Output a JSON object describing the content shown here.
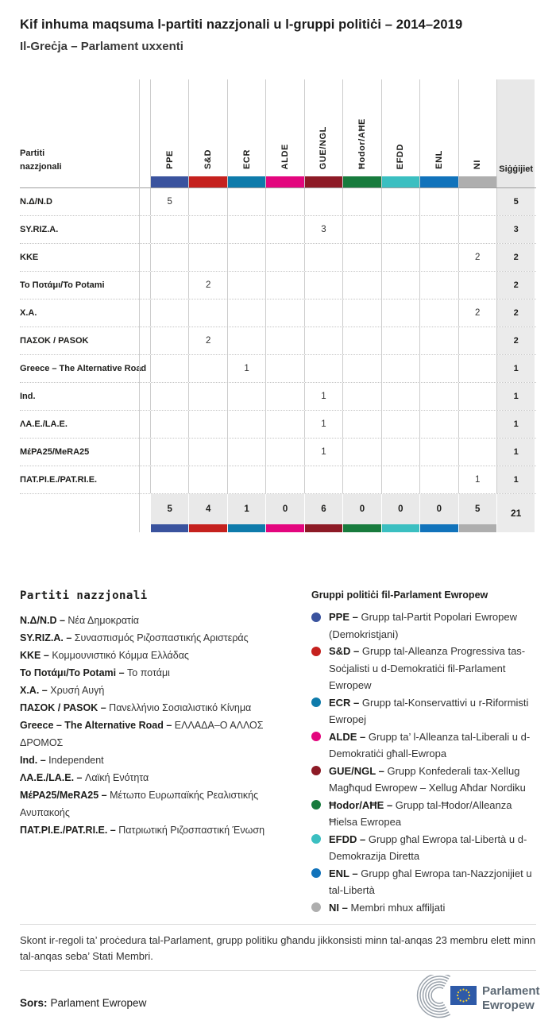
{
  "title": "Kif inhuma maqsuma l-partiti nazzjonali u l-gruppi politiċi – 2014–2019",
  "subtitle": "Il-Greċja – Parlament uxxenti",
  "chart_data": {
    "type": "table",
    "title": "Kif inhuma maqsuma l-partiti nazzjonali u l-gruppi politiċi – 2014–2019",
    "subtitle": "Il-Greċja – Parlament uxxenti",
    "columns": [
      "PPE",
      "S&D",
      "ECR",
      "ALDE",
      "GUE/NGL",
      "Ħodor/AĦE",
      "EFDD",
      "ENL",
      "NI",
      "Siġġijiet"
    ],
    "rows": [
      {
        "party": "Ν.Δ/N.D",
        "seats_by_group": {
          "PPE": 5
        },
        "total": 5
      },
      {
        "party": "SY.RIZ.A.",
        "seats_by_group": {
          "GUE/NGL": 3
        },
        "total": 3
      },
      {
        "party": "ΚΚΕ",
        "seats_by_group": {
          "NI": 2
        },
        "total": 2
      },
      {
        "party": "Το Ποτάμι/To Potami",
        "seats_by_group": {
          "S&D": 2
        },
        "total": 2
      },
      {
        "party": "Χ.Α.",
        "seats_by_group": {
          "NI": 2
        },
        "total": 2
      },
      {
        "party": "ΠΑΣΟΚ / PASOK",
        "seats_by_group": {
          "S&D": 2
        },
        "total": 2
      },
      {
        "party": "Greece – The Alternative Road",
        "seats_by_group": {
          "ECR": 1
        },
        "total": 1
      },
      {
        "party": "Ind.",
        "seats_by_group": {
          "GUE/NGL": 1
        },
        "total": 1
      },
      {
        "party": "ΛΑ.Ε./LA.E.",
        "seats_by_group": {
          "GUE/NGL": 1
        },
        "total": 1
      },
      {
        "party": "ΜέΡΑ25/MeRA25",
        "seats_by_group": {
          "GUE/NGL": 1
        },
        "total": 1
      },
      {
        "party": "ΠΑΤ.ΡΙ.Ε./PAT.RI.E.",
        "seats_by_group": {
          "NI": 1
        },
        "total": 1
      }
    ],
    "column_totals": {
      "PPE": 5,
      "S&D": 4,
      "ECR": 1,
      "ALDE": 0,
      "GUE/NGL": 6,
      "Ħodor/AĦE": 0,
      "EFDD": 0,
      "ENL": 0,
      "NI": 5,
      "total": 21
    }
  },
  "table": {
    "label_header": "Partiti nazzjonali",
    "seats_header": "Siġġijiet",
    "groups": [
      {
        "code": "PPE",
        "color": "#3a539e"
      },
      {
        "code": "S&D",
        "color": "#c5211e"
      },
      {
        "code": "ECR",
        "color": "#0e7bab"
      },
      {
        "code": "ALDE",
        "color": "#e3067e"
      },
      {
        "code": "GUE/NGL",
        "color": "#8d1a26"
      },
      {
        "code": "Ħodor/AĦE",
        "color": "#187b3d"
      },
      {
        "code": "EFDD",
        "color": "#3bbfc1"
      },
      {
        "code": "ENL",
        "color": "#1173bb"
      },
      {
        "code": "NI",
        "color": "#aeaeae"
      }
    ],
    "rows": [
      {
        "label": "Ν.Δ/N.D",
        "values": [
          "5",
          "",
          "",
          "",
          "",
          "",
          "",
          "",
          ""
        ],
        "seats": "5"
      },
      {
        "label": "SY.RIZ.A.",
        "values": [
          "",
          "",
          "",
          "",
          "3",
          "",
          "",
          "",
          ""
        ],
        "seats": "3"
      },
      {
        "label": "ΚΚΕ",
        "values": [
          "",
          "",
          "",
          "",
          "",
          "",
          "",
          "",
          "2"
        ],
        "seats": "2"
      },
      {
        "label": "Το Ποτάμι/To Potami",
        "values": [
          "",
          "2",
          "",
          "",
          "",
          "",
          "",
          "",
          ""
        ],
        "seats": "2"
      },
      {
        "label": "Χ.Α.",
        "values": [
          "",
          "",
          "",
          "",
          "",
          "",
          "",
          "",
          "2"
        ],
        "seats": "2"
      },
      {
        "label": "ΠΑΣΟΚ / PASOK",
        "values": [
          "",
          "2",
          "",
          "",
          "",
          "",
          "",
          "",
          ""
        ],
        "seats": "2"
      },
      {
        "label": "Greece – The Alternative Road",
        "values": [
          "",
          "",
          "1",
          "",
          "",
          "",
          "",
          "",
          ""
        ],
        "seats": "1"
      },
      {
        "label": "Ind.",
        "values": [
          "",
          "",
          "",
          "",
          "1",
          "",
          "",
          "",
          ""
        ],
        "seats": "1"
      },
      {
        "label": "ΛΑ.Ε./LA.E.",
        "values": [
          "",
          "",
          "",
          "",
          "1",
          "",
          "",
          "",
          ""
        ],
        "seats": "1"
      },
      {
        "label": "ΜέΡΑ25/MeRA25",
        "values": [
          "",
          "",
          "",
          "",
          "1",
          "",
          "",
          "",
          ""
        ],
        "seats": "1"
      },
      {
        "label": "ΠΑΤ.ΡΙ.Ε./PAT.RI.E.",
        "values": [
          "",
          "",
          "",
          "",
          "",
          "",
          "",
          "",
          "1"
        ],
        "seats": "1"
      }
    ],
    "totals": {
      "values": [
        "5",
        "4",
        "1",
        "0",
        "6",
        "0",
        "0",
        "0",
        "5"
      ],
      "seats": "21"
    }
  },
  "party_legend": {
    "heading": "Partiti nazzjonali",
    "items": [
      {
        "abbr": "Ν.Δ/N.D –",
        "name": "Νέα Δημοκρατία"
      },
      {
        "abbr": "SY.RIZ.A. –",
        "name": "Συνασπισμός Ριζοσπαστικής Αριστεράς"
      },
      {
        "abbr": "ΚΚΕ –",
        "name": "Κομμουνιστικό Κόμμα Ελλάδας"
      },
      {
        "abbr": "Το Ποτάμι/To Potami –",
        "name": "Το ποτάμι"
      },
      {
        "abbr": "Χ.Α. –",
        "name": "Χρυσή Αυγή"
      },
      {
        "abbr": "ΠΑΣΟΚ / PASOK –",
        "name": "Πανελλήνιο Σοσιαλιστικό Κίνημα"
      },
      {
        "abbr": "Greece – The Alternative Road –",
        "name": "ΕΛΛΑΔΑ–Ο ΑΛΛΟΣ ΔΡΟΜΟΣ"
      },
      {
        "abbr": "Ind. –",
        "name": "Independent"
      },
      {
        "abbr": "ΛΑ.Ε./LA.E. –",
        "name": "Λαϊκή Ενότητα"
      },
      {
        "abbr": "ΜέΡΑ25/MeRA25 –",
        "name": "Μέτωπο Ευρωπαϊκής Ρεαλιστικής Ανυπακοής"
      },
      {
        "abbr": "ΠΑΤ.ΡΙ.Ε./PAT.RI.E. –",
        "name": "Πατριωτική Ριζοσπαστική Ένωση"
      }
    ]
  },
  "group_legend": {
    "heading": "Gruppi politiċi fil-Parlament Ewropew",
    "items": [
      {
        "code": "PPE –",
        "desc": "Grupp tal-Partit Popolari Ewropew (Demokristjani)",
        "color": "#3a539e"
      },
      {
        "code": "S&D –",
        "desc": "Grupp tal-Alleanza Progressiva tas-Soċjalisti u d-Demokratiċi fil-Parlament Ewropew",
        "color": "#c5211e"
      },
      {
        "code": "ECR –",
        "desc": "Grupp tal-Konservattivi u r-Riformisti Ewropej",
        "color": "#0e7bab"
      },
      {
        "code": "ALDE –",
        "desc": "Grupp ta’ l-Alleanza tal-Liberali u d-Demokratiċi għall-Ewropa",
        "color": "#e3067e"
      },
      {
        "code": "GUE/NGL –",
        "desc": "Grupp Konfederali tax-Xellug Magħqud Ewropew – Xellug Aħdar Nordiku",
        "color": "#8d1a26"
      },
      {
        "code": "Ħodor/AĦE –",
        "desc": "Grupp tal-Ħodor/Alleanza Ħielsa Ewropea",
        "color": "#187b3d"
      },
      {
        "code": "EFDD –",
        "desc": "Grupp għal Ewropa tal-Libertà u d-Demokrazija Diretta",
        "color": "#3bbfc1"
      },
      {
        "code": "ENL –",
        "desc": "Grupp għal Ewropa tan-Nazzjonijiet u tal-Libertà",
        "color": "#1173bb"
      },
      {
        "code": "NI –",
        "desc": "Membri mhux affiljati",
        "color": "#aeaeae"
      }
    ]
  },
  "footer": {
    "note": "Skont ir-regoli ta’ proċedura tal-Parlament, grupp politiku għandu jikkonsisti minn tal-anqas 23 membru elett minn tal-anqas seba’ Stati Membri.",
    "source_label": "Sors:",
    "source_name": "Parlament Ewropew",
    "logo_line1": "Parlament",
    "logo_line2": "Ewropew"
  }
}
